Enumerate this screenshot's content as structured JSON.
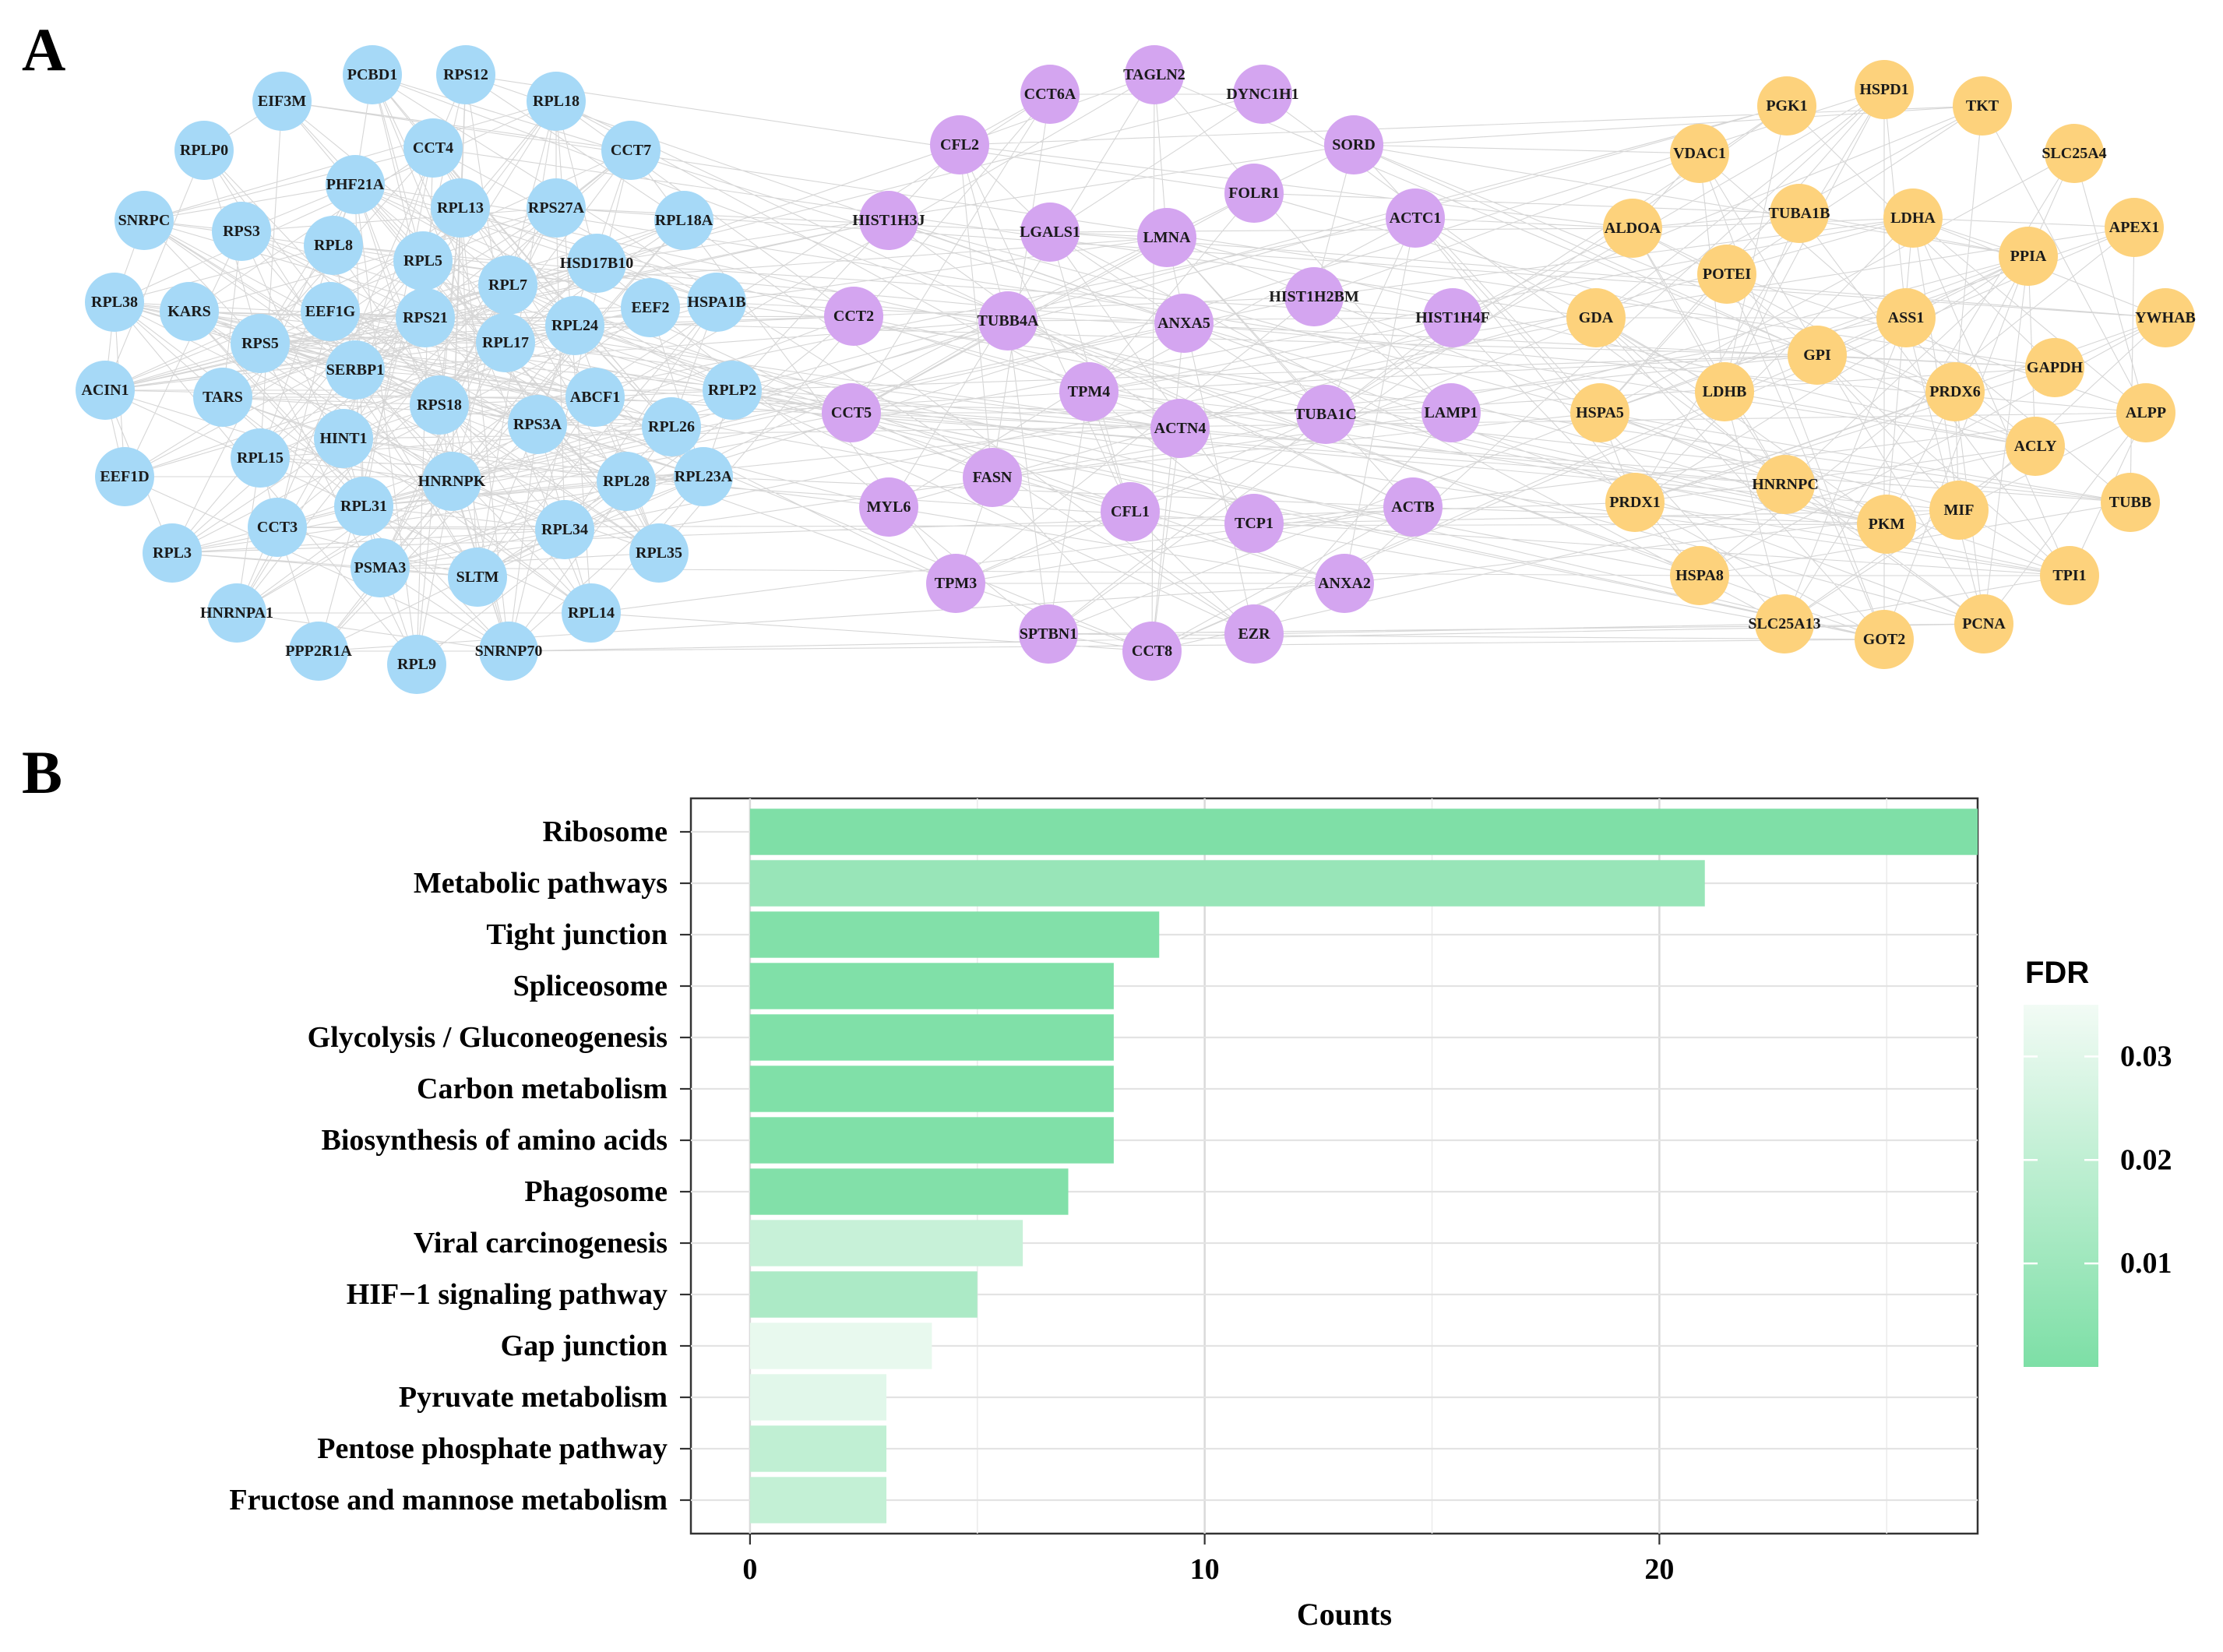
{
  "panel_a": {
    "letter": "A",
    "groups": [
      {
        "name": "blue",
        "color": "#a6d9f7",
        "nodes": [
          "PCBD1",
          "RPS12",
          "EIF3M",
          "RPL18",
          "RPLP0",
          "CCT4",
          "CCT7",
          "PHF21A",
          "SNRPC",
          "RPS3",
          "RPL13",
          "RPS27A",
          "RPL18A",
          "RPL8",
          "RPL5",
          "HSD17B10",
          "RPL7",
          "RPL38",
          "KARS",
          "EEF1G",
          "RPS21",
          "RPL24",
          "EEF2",
          "HSPA1B",
          "RPS5",
          "RPL17",
          "SERBP1",
          "ACIN1",
          "TARS",
          "ABCF1",
          "RPLP2",
          "RPS18",
          "RPS3A",
          "RPL26",
          "HINT1",
          "RPL15",
          "EEF1D",
          "HNRNPK",
          "RPL28",
          "RPL23A",
          "RPL31",
          "CCT3",
          "RPL34",
          "RPL3",
          "PSMA3",
          "SLTM",
          "RPL35",
          "HNRNPA1",
          "RPL14",
          "PPP2R1A",
          "SNRNP70",
          "RPL9"
        ]
      },
      {
        "name": "purple",
        "color": "#d4a5f0",
        "nodes": [
          "TAGLN2",
          "CCT6A",
          "DYNC1H1",
          "CFL2",
          "SORD",
          "FOLR1",
          "HIST1H3J",
          "LGALS1",
          "LMNA",
          "ACTC1",
          "HIST1H2BM",
          "CCT2",
          "TUBB4A",
          "ANXA5",
          "HIST1H4F",
          "TPM4",
          "CCT5",
          "ACTN4",
          "TUBA1C",
          "LAMP1",
          "FASN",
          "MYL6",
          "CFL1",
          "TCP1",
          "ACTB",
          "TPM3",
          "ANXA2",
          "SPTBN1",
          "CCT8",
          "EZR"
        ]
      },
      {
        "name": "orange",
        "color": "#fdd27c",
        "nodes": [
          "HSPD1",
          "PGK1",
          "TKT",
          "VDAC1",
          "SLC25A4",
          "TUBA1B",
          "LDHA",
          "ALDOA",
          "APEX1",
          "PPIA",
          "POTEI",
          "GDA",
          "ASS1",
          "YWHAB",
          "GPI",
          "GAPDH",
          "LDHB",
          "PRDX6",
          "HSPA5",
          "ALPP",
          "ACLY",
          "HNRNPC",
          "PRDX1",
          "MIF",
          "TUBB",
          "PKM",
          "HSPA8",
          "TPI1",
          "SLC25A13",
          "PCNA",
          "GOT2"
        ]
      }
    ]
  },
  "panel_b": {
    "letter": "B"
  },
  "chart_data": {
    "type": "bar",
    "orientation": "horizontal",
    "categories": [
      "Ribosome",
      "Metabolic pathways",
      "Tight junction",
      "Spliceosome",
      "Glycolysis / Gluconeogenesis",
      "Carbon metabolism",
      "Biosynthesis of amino acids",
      "Phagosome",
      "Viral carcinogenesis",
      "HIF−1 signaling pathway",
      "Gap junction",
      "Pyruvate metabolism",
      "Pentose phosphate pathway",
      "Fructose and mannose metabolism"
    ],
    "values": [
      27,
      21,
      9,
      8,
      8,
      8,
      8,
      7,
      6,
      5,
      4,
      3,
      3,
      3
    ],
    "fdr": [
      0.0005,
      0.008,
      0.0015,
      0.001,
      0.001,
      0.001,
      0.001,
      0.0015,
      0.022,
      0.014,
      0.032,
      0.03,
      0.02,
      0.021
    ],
    "xlabel": "Counts",
    "ylabel": "",
    "xlim": [
      -1.3,
      27.0
    ],
    "xticks": [
      "0",
      "10",
      "20"
    ],
    "xtick_values": [
      0,
      10,
      20
    ],
    "grid": true,
    "legend": {
      "title": "FDR",
      "position": "right",
      "range": [
        0.0,
        0.035
      ],
      "ticks": [
        "0.03",
        "0.02",
        "0.01"
      ],
      "tick_values": [
        0.03,
        0.02,
        0.01
      ],
      "color_low": "#7ddfa6",
      "color_high": "#f2fbf5"
    }
  }
}
